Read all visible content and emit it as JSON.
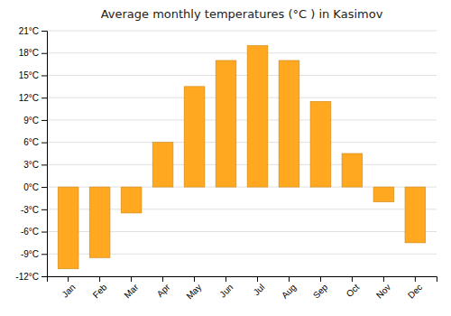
{
  "chart_data": {
    "type": "bar",
    "title": "Average monthly temperatures (°C ) in Kasimov",
    "categories": [
      "Jan",
      "Feb",
      "Mar",
      "Apr",
      "May",
      "Jun",
      "Jul",
      "Aug",
      "Sep",
      "Oct",
      "Nov",
      "Dec"
    ],
    "values": [
      -11,
      -9.5,
      -3.5,
      6,
      13.5,
      17,
      19,
      17,
      11.5,
      4.5,
      -2,
      -7.5
    ],
    "color": "#FFA820",
    "ylim": [
      -12,
      21
    ],
    "yticks": [
      {
        "value": -12,
        "label": "-12°C"
      },
      {
        "value": -9,
        "label": "-9°C"
      },
      {
        "value": -6,
        "label": "-6°C"
      },
      {
        "value": -3,
        "label": "-3°C"
      },
      {
        "value": 0,
        "label": "0°C"
      },
      {
        "value": 3,
        "label": "3°C"
      },
      {
        "value": 6,
        "label": "6°C"
      },
      {
        "value": 9,
        "label": "9°C"
      },
      {
        "value": 12,
        "label": "12°C"
      },
      {
        "value": 15,
        "label": "15°C"
      },
      {
        "value": 18,
        "label": "18°C"
      },
      {
        "value": 21,
        "label": "21°C"
      }
    ],
    "grid": true
  }
}
